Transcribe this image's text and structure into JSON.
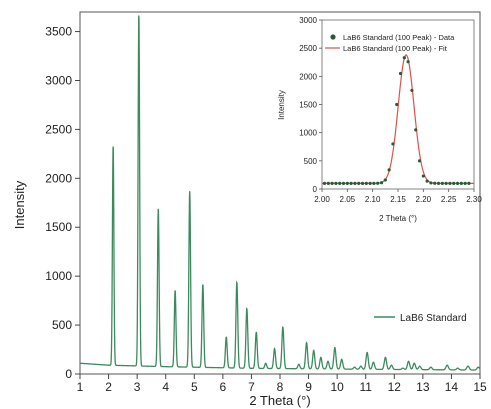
{
  "chart_data": [
    {
      "id": "main",
      "type": "line",
      "xlabel": "2 Theta (°)",
      "ylabel": "Intensity",
      "xlim": [
        1,
        15
      ],
      "ylim": [
        0,
        3700
      ],
      "x_ticks": [
        1,
        2,
        3,
        4,
        5,
        6,
        7,
        8,
        9,
        10,
        11,
        12,
        13,
        14,
        15
      ],
      "y_ticks": [
        0,
        500,
        1000,
        1500,
        2000,
        2500,
        3000,
        3500
      ],
      "legend": {
        "position": "bottom-right",
        "entries": [
          "LaB6 Standard"
        ]
      },
      "series": [
        {
          "name": "LaB6 Standard",
          "color": "#3c8a5e",
          "baseline": [
            [
              1,
              110
            ],
            [
              2,
              90
            ],
            [
              4,
              75
            ],
            [
              7,
              58
            ],
            [
              11,
              48
            ],
            [
              15,
              40
            ]
          ],
          "peaks": [
            {
              "x": 2.16,
              "y": 2350
            },
            {
              "x": 3.06,
              "y": 3700
            },
            {
              "x": 3.74,
              "y": 1690
            },
            {
              "x": 4.33,
              "y": 860
            },
            {
              "x": 4.84,
              "y": 1870
            },
            {
              "x": 5.3,
              "y": 920
            },
            {
              "x": 6.12,
              "y": 380
            },
            {
              "x": 6.49,
              "y": 940
            },
            {
              "x": 6.84,
              "y": 670
            },
            {
              "x": 7.17,
              "y": 430
            },
            {
              "x": 7.5,
              "y": 110
            },
            {
              "x": 7.81,
              "y": 260
            },
            {
              "x": 8.1,
              "y": 480
            },
            {
              "x": 8.66,
              "y": 100
            },
            {
              "x": 8.93,
              "y": 320
            },
            {
              "x": 9.18,
              "y": 240
            },
            {
              "x": 9.43,
              "y": 170
            },
            {
              "x": 9.68,
              "y": 130
            },
            {
              "x": 9.92,
              "y": 270
            },
            {
              "x": 10.16,
              "y": 150
            },
            {
              "x": 10.61,
              "y": 70
            },
            {
              "x": 10.83,
              "y": 80
            },
            {
              "x": 11.05,
              "y": 220
            },
            {
              "x": 11.27,
              "y": 120
            },
            {
              "x": 11.69,
              "y": 170
            },
            {
              "x": 11.9,
              "y": 90
            },
            {
              "x": 12.3,
              "y": 60
            },
            {
              "x": 12.5,
              "y": 130
            },
            {
              "x": 12.7,
              "y": 110
            },
            {
              "x": 12.89,
              "y": 80
            },
            {
              "x": 13.28,
              "y": 70
            },
            {
              "x": 13.85,
              "y": 90
            },
            {
              "x": 14.22,
              "y": 60
            },
            {
              "x": 14.58,
              "y": 80
            },
            {
              "x": 14.94,
              "y": 70
            }
          ]
        }
      ]
    },
    {
      "id": "inset",
      "type": "scatter",
      "xlabel": "2 Theta (°)",
      "ylabel": "Intensity",
      "xlim": [
        2.0,
        2.3
      ],
      "ylim": [
        0,
        3000
      ],
      "x_ticks": [
        2.0,
        2.05,
        2.1,
        2.15,
        2.2,
        2.25,
        2.3
      ],
      "y_ticks": [
        0,
        500,
        1000,
        1500,
        2000,
        2500,
        3000
      ],
      "legend": {
        "position": "top-right",
        "entries": [
          "LaB6 Standard (100 Peak) - Data",
          "LaB6 Standard (100 Peak) - Fit"
        ]
      },
      "series": [
        {
          "name": "LaB6 Standard (100 Peak) - Data",
          "color": "#2d5a36",
          "x": [
            2.005,
            2.0125,
            2.02,
            2.0275,
            2.035,
            2.0425,
            2.05,
            2.0575,
            2.065,
            2.0725,
            2.08,
            2.0875,
            2.095,
            2.1025,
            2.11,
            2.1175,
            2.125,
            2.1325,
            2.14,
            2.1475,
            2.155,
            2.1625,
            2.17,
            2.1775,
            2.185,
            2.1925,
            2.2,
            2.2075,
            2.215,
            2.2225,
            2.23,
            2.2375,
            2.245,
            2.2525,
            2.26,
            2.2675,
            2.275,
            2.2825,
            2.29
          ],
          "y": [
            100,
            100,
            100,
            100,
            100,
            100,
            100,
            100,
            100,
            100,
            100,
            100,
            100,
            100,
            102,
            112,
            160,
            340,
            800,
            1500,
            2050,
            2330,
            2260,
            1750,
            1050,
            500,
            230,
            140,
            108,
            102,
            100,
            100,
            100,
            100,
            100,
            100,
            100,
            100,
            100
          ]
        },
        {
          "name": "LaB6 Standard (100 Peak) - Fit",
          "color": "#e0504a",
          "model": "gaussian",
          "center": 2.166,
          "height": 2280,
          "baseline": 100,
          "sigma": 0.0155
        }
      ]
    }
  ]
}
